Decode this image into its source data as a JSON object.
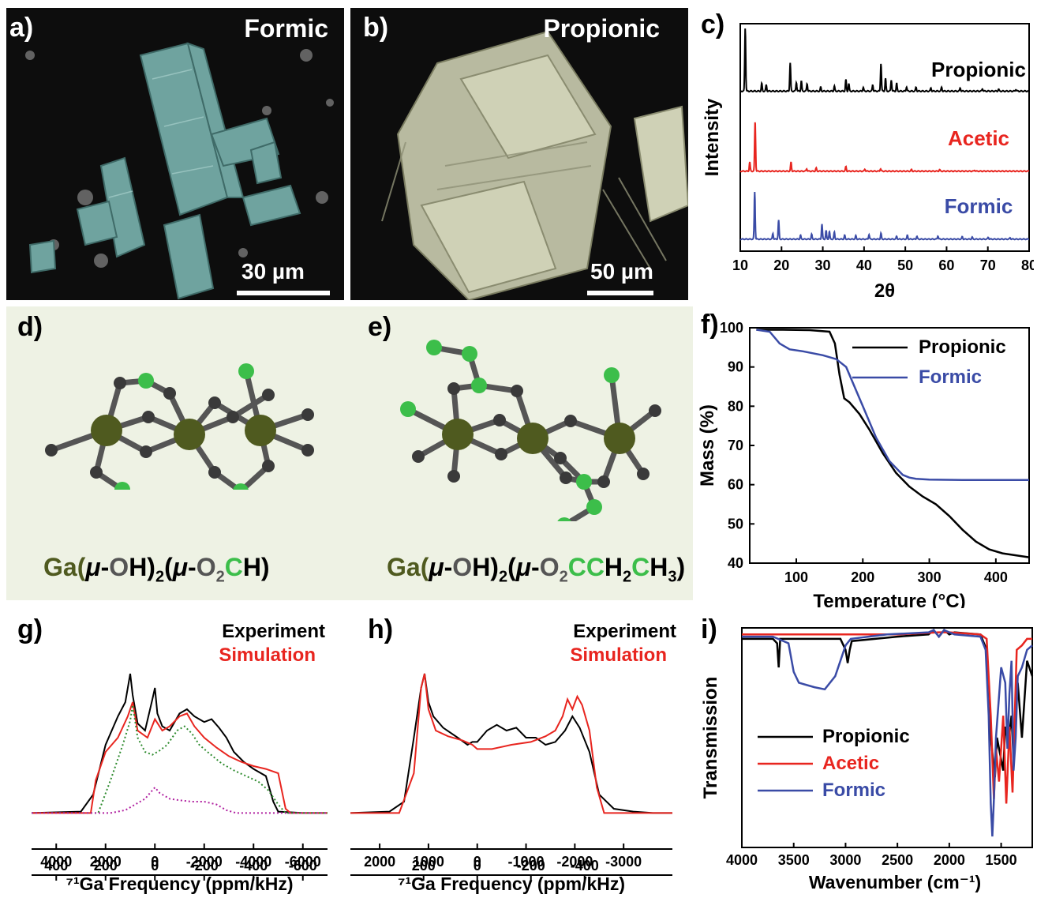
{
  "panels": {
    "a": {
      "label": "a)",
      "title": "Formic",
      "scale": "30 µm"
    },
    "b": {
      "label": "b)",
      "title": "Propionic",
      "scale": "50 µm"
    },
    "c": {
      "label": "c)"
    },
    "d": {
      "label": "d)",
      "formula_parts": [
        "Ga(",
        "μ",
        "-",
        "O",
        "H)",
        "2",
        "(",
        "μ",
        "-",
        "O",
        "2",
        "C",
        "H)"
      ]
    },
    "e": {
      "label": "e)",
      "formula_parts": [
        "Ga(",
        "μ",
        "-",
        "O",
        "H)",
        "2",
        "(",
        "μ",
        "-",
        "O",
        "2",
        "C",
        "C",
        "H",
        "2",
        "C",
        "H",
        "3",
        ")"
      ]
    },
    "f": {
      "label": "f)"
    },
    "g": {
      "label": "g)"
    },
    "h": {
      "label": "h)"
    },
    "i": {
      "label": "i)"
    }
  },
  "colors": {
    "black": "#000000",
    "red": "#e8251f",
    "blue": "#3a4ba6",
    "green": "#3cbe4a",
    "ga": "#4f5a1f",
    "formic_tint": "#6fa39f",
    "propionic_tint": "#b8baa0",
    "mol_bg": "#eef2e4"
  },
  "chart_data": [
    {
      "id": "c",
      "type": "line",
      "xlabel": "2θ",
      "ylabel": "Intensity",
      "xlim": [
        10,
        80
      ],
      "xticks": [
        10,
        20,
        30,
        40,
        50,
        60,
        70,
        80
      ],
      "series": [
        {
          "name": "Propionic",
          "color": "#000000",
          "peaks": [
            [
              11.2,
              1.0
            ],
            [
              15.2,
              0.12
            ],
            [
              16.3,
              0.1
            ],
            [
              22.1,
              0.45
            ],
            [
              23.6,
              0.14
            ],
            [
              24.8,
              0.16
            ],
            [
              26.2,
              0.12
            ],
            [
              29.5,
              0.06
            ],
            [
              32.8,
              0.08
            ],
            [
              35.6,
              0.18
            ],
            [
              36.3,
              0.12
            ],
            [
              39.8,
              0.06
            ],
            [
              42.1,
              0.1
            ],
            [
              44.1,
              0.44
            ],
            [
              45.2,
              0.2
            ],
            [
              46.6,
              0.18
            ],
            [
              47.9,
              0.12
            ],
            [
              50.3,
              0.07
            ],
            [
              52.6,
              0.06
            ],
            [
              56.2,
              0.05
            ],
            [
              58.8,
              0.06
            ],
            [
              63.3,
              0.05
            ],
            [
              68.7,
              0.04
            ],
            [
              72.6,
              0.03
            ],
            [
              76.8,
              0.03
            ]
          ]
        },
        {
          "name": "Acetic",
          "color": "#e8251f",
          "peaks": [
            [
              12.3,
              0.18
            ],
            [
              13.6,
              1.0
            ],
            [
              22.3,
              0.18
            ],
            [
              26.1,
              0.05
            ],
            [
              28.4,
              0.06
            ],
            [
              35.6,
              0.09
            ],
            [
              40.2,
              0.04
            ],
            [
              44.0,
              0.05
            ],
            [
              51.5,
              0.03
            ],
            [
              58.3,
              0.03
            ],
            [
              66.8,
              0.02
            ]
          ]
        },
        {
          "name": "Formic",
          "color": "#3a4ba6",
          "peaks": [
            [
              13.5,
              1.0
            ],
            [
              17.9,
              0.12
            ],
            [
              19.3,
              0.4
            ],
            [
              24.6,
              0.08
            ],
            [
              27.3,
              0.1
            ],
            [
              29.8,
              0.32
            ],
            [
              30.8,
              0.18
            ],
            [
              31.6,
              0.16
            ],
            [
              32.8,
              0.15
            ],
            [
              35.3,
              0.08
            ],
            [
              38.0,
              0.07
            ],
            [
              41.2,
              0.1
            ],
            [
              44.1,
              0.12
            ],
            [
              47.9,
              0.06
            ],
            [
              50.5,
              0.08
            ],
            [
              52.8,
              0.06
            ],
            [
              57.9,
              0.07
            ],
            [
              63.8,
              0.05
            ],
            [
              66.2,
              0.04
            ],
            [
              70.1,
              0.04
            ],
            [
              75.4,
              0.03
            ]
          ]
        }
      ]
    },
    {
      "id": "f",
      "type": "line",
      "xlabel": "Temperature (°C)",
      "ylabel": "Mass (%)",
      "xlim": [
        30,
        450
      ],
      "ylim": [
        40,
        100
      ],
      "xticks": [
        100,
        200,
        300,
        400
      ],
      "yticks": [
        40,
        50,
        60,
        70,
        80,
        90,
        100
      ],
      "series": [
        {
          "name": "Propionic",
          "color": "#000000",
          "x": [
            40,
            80,
            120,
            150,
            158,
            165,
            172,
            180,
            195,
            210,
            230,
            250,
            270,
            290,
            310,
            330,
            350,
            370,
            390,
            410,
            430,
            450
          ],
          "y": [
            99.5,
            99.5,
            99.4,
            99,
            96,
            88,
            82,
            81,
            78,
            74,
            68,
            63,
            59.5,
            57,
            55,
            52,
            48.5,
            45.5,
            43.5,
            42.5,
            42,
            41.5
          ]
        },
        {
          "name": "Formic",
          "color": "#3a4ba6",
          "x": [
            40,
            60,
            75,
            90,
            110,
            140,
            160,
            175,
            185,
            200,
            220,
            240,
            260,
            270,
            280,
            300,
            350,
            400,
            450
          ],
          "y": [
            99.5,
            99,
            96,
            94.5,
            94,
            93,
            92,
            90,
            86,
            80,
            72,
            66,
            62.5,
            61.8,
            61.5,
            61.3,
            61.2,
            61.2,
            61.2
          ]
        }
      ]
    },
    {
      "id": "g",
      "type": "line",
      "xlabel": "⁷¹Ga Frequency (ppm/kHz)",
      "xlim": [
        5000,
        -7000
      ],
      "xticks": [
        4000,
        2000,
        0,
        -2000,
        -4000,
        -6000
      ],
      "xticks2": [
        400,
        200,
        0,
        -200,
        -400,
        -600
      ],
      "legend": [
        "Experiment",
        "Simulation"
      ],
      "series": [
        {
          "name": "Experiment",
          "color": "#000000",
          "x": [
            5000,
            3000,
            2500,
            2000,
            1500,
            1200,
            1000,
            900,
            700,
            400,
            100,
            0,
            -100,
            -300,
            -600,
            -1000,
            -1300,
            -1600,
            -2000,
            -2300,
            -2600,
            -2900,
            -3200,
            -3600,
            -4000,
            -4500,
            -4800,
            -5000,
            -6000,
            -7000
          ],
          "y": [
            0.02,
            0.03,
            0.15,
            0.5,
            0.7,
            0.8,
            1.0,
            0.85,
            0.65,
            0.6,
            0.82,
            0.9,
            0.72,
            0.63,
            0.6,
            0.72,
            0.75,
            0.7,
            0.66,
            0.68,
            0.62,
            0.55,
            0.45,
            0.38,
            0.33,
            0.28,
            0.1,
            0.03,
            0.02,
            0.02
          ]
        },
        {
          "name": "Simulation",
          "color": "#e8251f",
          "x": [
            5000,
            2600,
            2400,
            2000,
            1500,
            1100,
            900,
            700,
            300,
            0,
            -300,
            -600,
            -1000,
            -1300,
            -1600,
            -2000,
            -2500,
            -3000,
            -3500,
            -4000,
            -4500,
            -5000,
            -5300,
            -5500,
            -7000
          ],
          "y": [
            0.02,
            0.02,
            0.25,
            0.45,
            0.55,
            0.7,
            0.8,
            0.6,
            0.55,
            0.68,
            0.6,
            0.63,
            0.7,
            0.72,
            0.63,
            0.55,
            0.48,
            0.42,
            0.38,
            0.35,
            0.33,
            0.3,
            0.05,
            0.02,
            0.02
          ]
        },
        {
          "name": "",
          "color": "#2e8b2e",
          "dashed": true,
          "x": [
            5000,
            2300,
            1800,
            1300,
            1000,
            900,
            700,
            400,
            100,
            -200,
            -500,
            -900,
            -1200,
            -1500,
            -1800,
            -2200,
            -2700,
            -3200,
            -3700,
            -4200,
            -4600,
            -5000,
            -5300,
            -7000
          ],
          "y": [
            0.02,
            0.02,
            0.25,
            0.5,
            0.67,
            0.78,
            0.55,
            0.45,
            0.43,
            0.46,
            0.5,
            0.6,
            0.63,
            0.58,
            0.5,
            0.44,
            0.37,
            0.32,
            0.28,
            0.24,
            0.18,
            0.08,
            0.02,
            0.02
          ]
        },
        {
          "name": "",
          "color": "#b020a0",
          "dashed": true,
          "x": [
            5000,
            1800,
            1200,
            800,
            400,
            100,
            0,
            -200,
            -600,
            -1000,
            -1500,
            -2000,
            -2500,
            -2900,
            -3300,
            -7000
          ],
          "y": [
            0.02,
            0.02,
            0.04,
            0.08,
            0.12,
            0.18,
            0.2,
            0.16,
            0.12,
            0.11,
            0.1,
            0.1,
            0.08,
            0.04,
            0.02,
            0.02
          ]
        }
      ]
    },
    {
      "id": "h",
      "type": "line",
      "xlabel": "⁷¹Ga Frequency (ppm/kHz)",
      "xlim": [
        2600,
        -4000
      ],
      "xticks": [
        2000,
        1000,
        0,
        -1000,
        -2000,
        -3000
      ],
      "xticks2": [
        200,
        0,
        -200,
        -400
      ],
      "legend": [
        "Experiment",
        "Simulation"
      ],
      "series": [
        {
          "name": "Experiment",
          "color": "#000000",
          "x": [
            2600,
            1800,
            1500,
            1300,
            1150,
            1080,
            1000,
            900,
            700,
            400,
            200,
            100,
            0,
            -200,
            -400,
            -600,
            -800,
            -1000,
            -1200,
            -1400,
            -1600,
            -1800,
            -1950,
            -2100,
            -2300,
            -2500,
            -2800,
            -3200,
            -3600,
            -4000
          ],
          "y": [
            0.02,
            0.03,
            0.1,
            0.55,
            0.9,
            1.0,
            0.8,
            0.7,
            0.62,
            0.55,
            0.5,
            0.52,
            0.52,
            0.6,
            0.64,
            0.6,
            0.62,
            0.55,
            0.55,
            0.5,
            0.52,
            0.6,
            0.7,
            0.62,
            0.45,
            0.15,
            0.05,
            0.03,
            0.02,
            0.02
          ]
        },
        {
          "name": "Simulation",
          "color": "#e8251f",
          "x": [
            2600,
            1600,
            1300,
            1150,
            1080,
            1000,
            850,
            600,
            300,
            100,
            0,
            -300,
            -700,
            -1100,
            -1400,
            -1600,
            -1750,
            -1850,
            -1950,
            -2050,
            -2150,
            -2300,
            -2450,
            -2600,
            -4000
          ],
          "y": [
            0.02,
            0.02,
            0.3,
            0.9,
            1.0,
            0.75,
            0.6,
            0.56,
            0.53,
            0.5,
            0.47,
            0.47,
            0.5,
            0.52,
            0.56,
            0.6,
            0.7,
            0.82,
            0.75,
            0.84,
            0.78,
            0.6,
            0.2,
            0.02,
            0.02
          ]
        }
      ]
    },
    {
      "id": "i",
      "type": "line",
      "xlabel": "Wavenumber (cm⁻¹)",
      "ylabel": "Transmission",
      "xlim": [
        4000,
        1200
      ],
      "xticks": [
        4000,
        3500,
        3000,
        2500,
        2000,
        1500
      ],
      "series": [
        {
          "name": "Propionic",
          "color": "#000000",
          "x": [
            4000,
            3700,
            3660,
            3645,
            3630,
            3600,
            3400,
            3050,
            3000,
            2980,
            2960,
            2940,
            2500,
            2200,
            2150,
            2100,
            2050,
            2000,
            1950,
            1700,
            1640,
            1600,
            1560,
            1540,
            1520,
            1480,
            1460,
            1430,
            1400,
            1380,
            1340,
            1300,
            1250,
            1200
          ],
          "y": [
            0.95,
            0.95,
            0.93,
            0.82,
            0.95,
            0.95,
            0.95,
            0.95,
            0.9,
            0.84,
            0.9,
            0.94,
            0.96,
            0.97,
            0.99,
            0.96,
            0.99,
            0.97,
            0.98,
            0.97,
            0.9,
            0.5,
            0.32,
            0.5,
            0.45,
            0.35,
            0.55,
            0.48,
            0.6,
            0.4,
            0.75,
            0.5,
            0.85,
            0.78
          ]
        },
        {
          "name": "Acetic",
          "color": "#e8251f",
          "x": [
            4000,
            3500,
            3000,
            2500,
            2100,
            2000,
            1700,
            1640,
            1600,
            1570,
            1550,
            1520,
            1480,
            1450,
            1420,
            1390,
            1350,
            1300,
            1250,
            1200
          ],
          "y": [
            0.97,
            0.97,
            0.97,
            0.97,
            0.98,
            0.98,
            0.97,
            0.95,
            0.6,
            0.22,
            0.45,
            0.3,
            0.6,
            0.2,
            0.55,
            0.25,
            0.9,
            0.92,
            0.95,
            0.95
          ]
        },
        {
          "name": "Formic",
          "color": "#3a4ba6",
          "x": [
            4000,
            3700,
            3550,
            3500,
            3450,
            3300,
            3200,
            3100,
            3050,
            3000,
            2950,
            2600,
            2200,
            2150,
            2100,
            2050,
            2000,
            1950,
            1700,
            1650,
            1620,
            1600,
            1585,
            1570,
            1550,
            1500,
            1460,
            1440,
            1420,
            1400,
            1380,
            1360,
            1340,
            1300,
            1250,
            1200
          ],
          "y": [
            0.96,
            0.96,
            0.93,
            0.8,
            0.75,
            0.73,
            0.72,
            0.78,
            0.85,
            0.92,
            0.95,
            0.97,
            0.98,
            0.99,
            0.96,
            0.99,
            0.98,
            0.97,
            0.96,
            0.9,
            0.6,
            0.2,
            0.05,
            0.22,
            0.5,
            0.82,
            0.75,
            0.45,
            0.7,
            0.85,
            0.35,
            0.5,
            0.78,
            0.82,
            0.9,
            0.92
          ]
        }
      ]
    }
  ]
}
